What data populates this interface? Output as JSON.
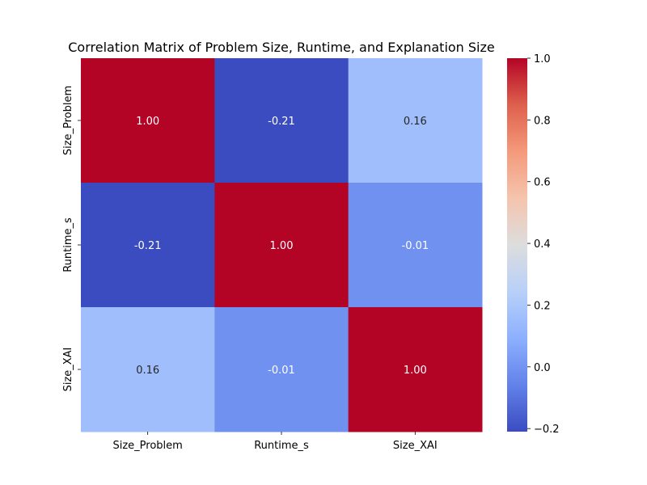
{
  "chart_data": {
    "type": "heatmap",
    "title": "Correlation Matrix of Problem Size, Runtime, and Explanation Size",
    "xlabel": "",
    "ylabel": "",
    "x_categories": [
      "Size_Problem",
      "Runtime_s",
      "Size_XAI"
    ],
    "y_categories": [
      "Size_Problem",
      "Runtime_s",
      "Size_XAI"
    ],
    "values": [
      [
        1.0,
        -0.21,
        0.16
      ],
      [
        -0.21,
        1.0,
        -0.01
      ],
      [
        0.16,
        -0.01,
        1.0
      ]
    ],
    "cell_labels": [
      [
        "1.00",
        "-0.21",
        "0.16"
      ],
      [
        "-0.21",
        "1.00",
        "-0.01"
      ],
      [
        "0.16",
        "-0.01",
        "1.00"
      ]
    ],
    "colormap": "coolwarm",
    "color_range": [
      -0.21,
      1.0
    ],
    "colorbar_ticks": [
      1.0,
      0.8,
      0.6,
      0.4,
      0.2,
      0.0,
      -0.2
    ],
    "colorbar_tick_labels": [
      "1.0",
      "0.8",
      "0.6",
      "0.4",
      "0.2",
      "0.0",
      "−0.2"
    ],
    "grid": false
  }
}
